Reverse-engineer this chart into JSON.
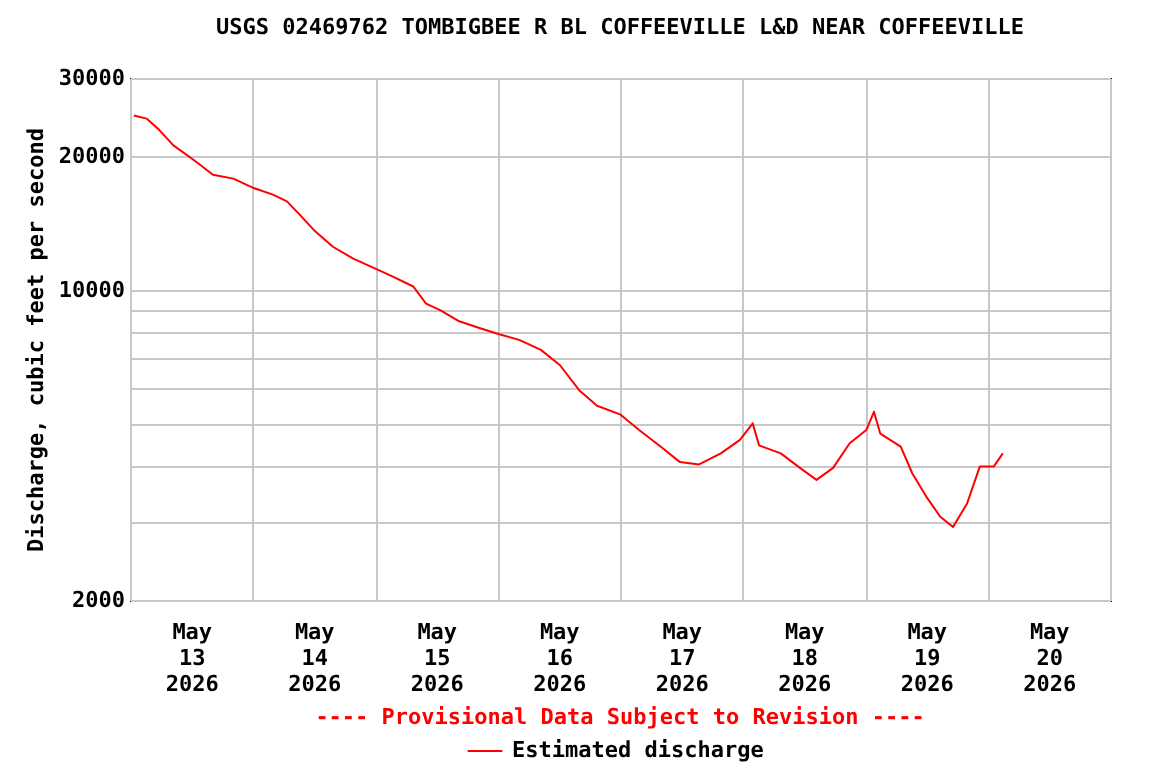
{
  "chart_data": {
    "type": "line",
    "title": "USGS 02469762 TOMBIGBEE R BL COFFEEVILLE L&D NEAR COFFEEVILLE",
    "ylabel": "Discharge, cubic feet per second",
    "annotations": [
      "---- Provisional Data Subject to Revision ----"
    ],
    "x": [
      "2026-05-13T00:45",
      "2026-05-13T03:15",
      "2026-05-13T05:45",
      "2026-05-13T08:30",
      "2026-05-13T12:30",
      "2026-05-13T16:15",
      "2026-05-13T20:15",
      "2026-05-14T00:15",
      "2026-05-14T04:00",
      "2026-05-14T06:45",
      "2026-05-14T09:15",
      "2026-05-14T12:00",
      "2026-05-14T15:45",
      "2026-05-14T19:45",
      "2026-05-14T23:45",
      "2026-05-15T03:30",
      "2026-05-15T07:30",
      "2026-05-15T10:00",
      "2026-05-15T12:45",
      "2026-05-15T16:30",
      "2026-05-15T20:45",
      "2026-05-16T00:30",
      "2026-05-16T04:15",
      "2026-05-16T08:30",
      "2026-05-16T12:15",
      "2026-05-16T16:00",
      "2026-05-16T19:30",
      "2026-05-17T00:00",
      "2026-05-17T03:45",
      "2026-05-17T08:00",
      "2026-05-17T11:45",
      "2026-05-17T15:30",
      "2026-05-17T19:45",
      "2026-05-17T23:30",
      "2026-05-18T02:00",
      "2026-05-18T03:15",
      "2026-05-18T07:30",
      "2026-05-18T11:15",
      "2026-05-18T14:30",
      "2026-05-18T17:45",
      "2026-05-18T21:00",
      "2026-05-19T00:15",
      "2026-05-19T01:45",
      "2026-05-19T03:00",
      "2026-05-19T07:00",
      "2026-05-19T09:15",
      "2026-05-19T12:00",
      "2026-05-19T14:45",
      "2026-05-19T17:15",
      "2026-05-19T20:00",
      "2026-05-19T22:30",
      "2026-05-20T01:15",
      "2026-05-20T03:00"
    ],
    "series": [
      {
        "name": "Estimated discharge",
        "color": "#ff0000",
        "values": [
          24700,
          24300,
          22900,
          21150,
          19600,
          18160,
          17800,
          16950,
          16380,
          15820,
          14770,
          13640,
          12500,
          11750,
          11200,
          10710,
          10170,
          9310,
          9000,
          8490,
          8180,
          7930,
          7710,
          7320,
          6760,
          5940,
          5480,
          5240,
          4830,
          4430,
          4090,
          4040,
          4280,
          4590,
          5000,
          4460,
          4280,
          3970,
          3730,
          3970,
          4510,
          4830,
          5310,
          4740,
          4430,
          3860,
          3420,
          3080,
          2920,
          3300,
          4000,
          4000,
          4280
        ]
      }
    ],
    "xlim": [
      "2026-05-13T00:00",
      "2026-05-21T00:00"
    ],
    "xticks": [
      {
        "value": "2026-05-13T00:00",
        "label": null
      },
      {
        "value": "2026-05-13T12:00",
        "label": "May 13 2026"
      },
      {
        "value": "2026-05-14T00:00",
        "label": null
      },
      {
        "value": "2026-05-14T12:00",
        "label": "May 14 2026"
      },
      {
        "value": "2026-05-15T00:00",
        "label": null
      },
      {
        "value": "2026-05-15T12:00",
        "label": "May 15 2026"
      },
      {
        "value": "2026-05-16T00:00",
        "label": null
      },
      {
        "value": "2026-05-16T12:00",
        "label": "May 16 2026"
      },
      {
        "value": "2026-05-17T00:00",
        "label": null
      },
      {
        "value": "2026-05-17T12:00",
        "label": "May 17 2026"
      },
      {
        "value": "2026-05-18T00:00",
        "label": null
      },
      {
        "value": "2026-05-18T12:00",
        "label": "May 18 2026"
      },
      {
        "value": "2026-05-19T00:00",
        "label": null
      },
      {
        "value": "2026-05-19T12:00",
        "label": "May 19 2026"
      },
      {
        "value": "2026-05-20T00:00",
        "label": null
      },
      {
        "value": "2026-05-20T12:00",
        "label": "May 20 2026"
      },
      {
        "value": "2026-05-21T00:00",
        "label": null
      }
    ],
    "ylim": [
      2000,
      30000
    ],
    "log": true,
    "yticks": [
      2000,
      {
        "value": 3000,
        "label": null
      },
      {
        "value": 4000,
        "label": null
      },
      {
        "value": 5000,
        "label": null
      },
      {
        "value": 6000,
        "label": null
      },
      {
        "value": 7000,
        "label": null
      },
      {
        "value": 8000,
        "label": null
      },
      {
        "value": 9000,
        "label": null
      },
      10000,
      20000,
      30000
    ],
    "grid": true,
    "legend": "bottom",
    "line_style": "solid"
  }
}
